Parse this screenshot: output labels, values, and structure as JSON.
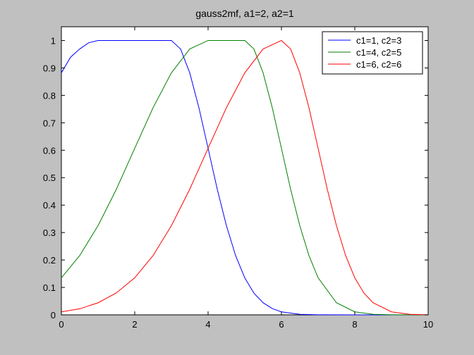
{
  "chart_data": {
    "type": "line",
    "title": "gauss2mf, a1=2, a2=1",
    "xlabel": "",
    "ylabel": "",
    "xlim": [
      0,
      10
    ],
    "ylim": [
      0,
      1.05
    ],
    "grid": false,
    "legend_position": "top-right",
    "x_ticks": [
      0,
      2,
      4,
      6,
      8,
      10
    ],
    "y_ticks": [
      0,
      0.1,
      0.2,
      0.3,
      0.4,
      0.5,
      0.6,
      0.7,
      0.8,
      0.9,
      1
    ],
    "x_tick_labels": [
      "0",
      "2",
      "4",
      "6",
      "8",
      "10"
    ],
    "y_tick_labels": [
      "0",
      "0.1",
      "0.2",
      "0.3",
      "0.4",
      "0.5",
      "0.6",
      "0.7",
      "0.8",
      "0.9",
      "1"
    ],
    "series": [
      {
        "name": "c1=1, c2=3",
        "color": "#0000ff",
        "x": [
          0,
          0.25,
          0.5,
          0.75,
          1,
          1.5,
          2,
          2.5,
          3,
          3.25,
          3.5,
          3.75,
          4,
          4.25,
          4.5,
          4.75,
          5,
          5.25,
          5.5,
          5.75,
          6,
          6.5,
          7,
          8,
          9,
          10
        ],
        "y": [
          0.882,
          0.939,
          0.969,
          0.992,
          1,
          1,
          1,
          1,
          1,
          0.969,
          0.882,
          0.755,
          0.607,
          0.458,
          0.325,
          0.216,
          0.135,
          0.079,
          0.044,
          0.023,
          0.011,
          0.002,
          0.0004,
          0,
          0,
          0
        ]
      },
      {
        "name": "c1=4, c2=5",
        "color": "#008000",
        "x": [
          0,
          0.5,
          1,
          1.5,
          2,
          2.5,
          3,
          3.5,
          4,
          4.5,
          5,
          5.25,
          5.5,
          5.75,
          6,
          6.25,
          6.5,
          6.75,
          7,
          7.5,
          8,
          8.5,
          9,
          10
        ],
        "y": [
          0.135,
          0.216,
          0.325,
          0.458,
          0.607,
          0.755,
          0.882,
          0.969,
          1,
          1,
          1,
          0.969,
          0.882,
          0.755,
          0.607,
          0.458,
          0.325,
          0.216,
          0.135,
          0.044,
          0.011,
          0.002,
          0.0004,
          0
        ]
      },
      {
        "name": "c1=6, c2=6",
        "color": "#ff0000",
        "x": [
          0,
          0.5,
          1,
          1.5,
          2,
          2.5,
          3,
          3.5,
          4,
          4.5,
          5,
          5.5,
          6,
          6.25,
          6.5,
          6.75,
          7,
          7.25,
          7.5,
          7.75,
          8,
          8.25,
          8.5,
          9,
          9.5,
          10
        ],
        "y": [
          0.011,
          0.022,
          0.044,
          0.08,
          0.135,
          0.216,
          0.325,
          0.458,
          0.607,
          0.755,
          0.882,
          0.969,
          1,
          0.969,
          0.882,
          0.755,
          0.607,
          0.458,
          0.325,
          0.216,
          0.135,
          0.079,
          0.044,
          0.011,
          0.002,
          0.0004
        ]
      }
    ]
  }
}
